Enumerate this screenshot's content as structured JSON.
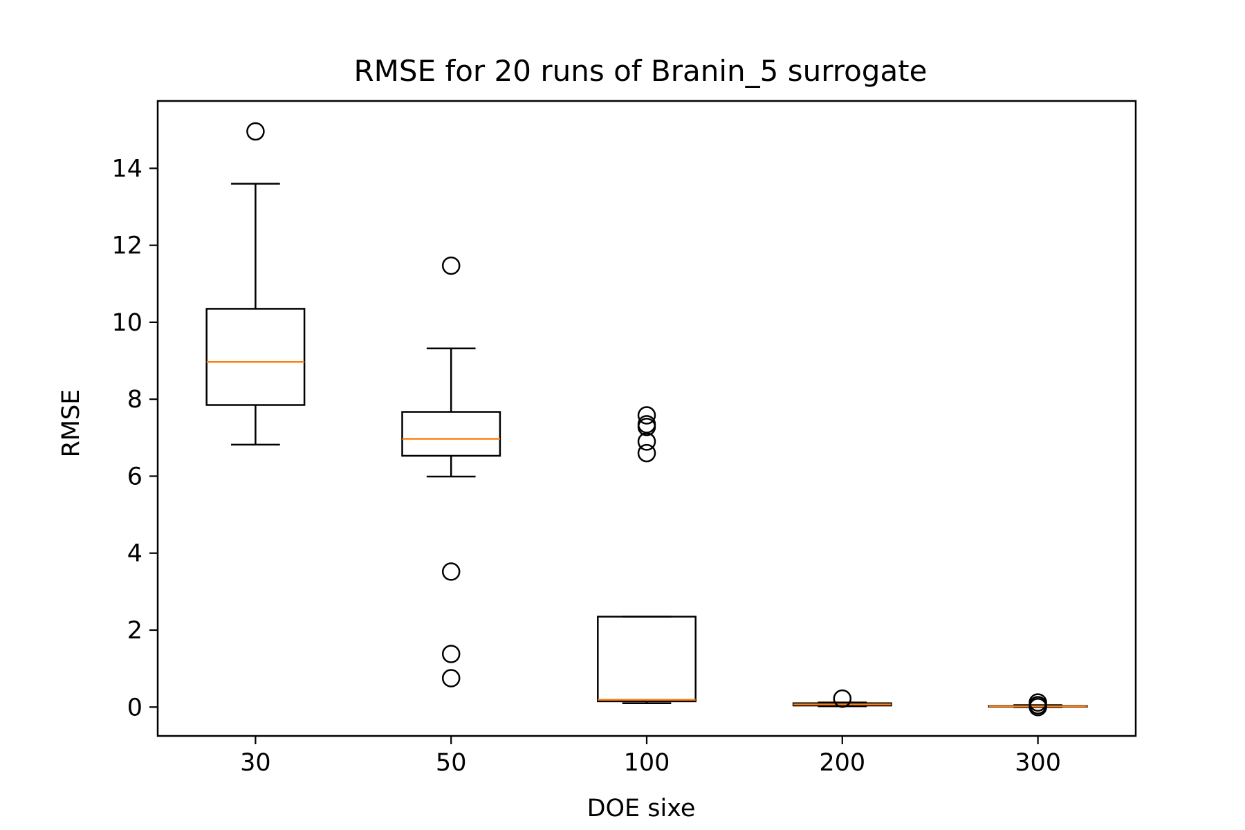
{
  "chart_data": {
    "type": "box",
    "title": "RMSE for 20 runs of Branin_5 surrogate",
    "xlabel": "DOE sixe",
    "ylabel": "RMSE",
    "categories": [
      "30",
      "50",
      "100",
      "200",
      "300"
    ],
    "ylim": [
      -0.75,
      15.75
    ],
    "yticks": [
      0,
      2,
      4,
      6,
      8,
      10,
      12,
      14
    ],
    "ytick_labels": [
      "0",
      "2",
      "4",
      "6",
      "8",
      "10",
      "12",
      "14"
    ],
    "grid": false,
    "legend": "none",
    "colors": {
      "box": "#000000",
      "median": "#ff7f0e",
      "flier": "#000000"
    },
    "boxes": [
      {
        "label": "30",
        "whislo": 6.82,
        "q1": 7.85,
        "med": 8.97,
        "q3": 10.35,
        "whishi": 13.6,
        "fliers": [
          14.96
        ]
      },
      {
        "label": "50",
        "whislo": 5.99,
        "q1": 6.53,
        "med": 6.97,
        "q3": 7.67,
        "whishi": 9.32,
        "fliers": [
          11.47,
          3.52,
          1.38,
          0.75
        ]
      },
      {
        "label": "100",
        "whislo": 0.1,
        "q1": 0.15,
        "med": 0.19,
        "q3": 2.35,
        "whishi": 2.35,
        "fliers": [
          7.58,
          7.35,
          7.28,
          6.9,
          6.6
        ]
      },
      {
        "label": "200",
        "whislo": 0.02,
        "q1": 0.04,
        "med": 0.07,
        "q3": 0.1,
        "whishi": 0.12,
        "fliers": [
          0.22
        ]
      },
      {
        "label": "300",
        "whislo": 0.0,
        "q1": 0.01,
        "med": 0.02,
        "q3": 0.03,
        "whishi": 0.05,
        "fliers": [
          0.12,
          0.05,
          0.0
        ]
      }
    ]
  }
}
